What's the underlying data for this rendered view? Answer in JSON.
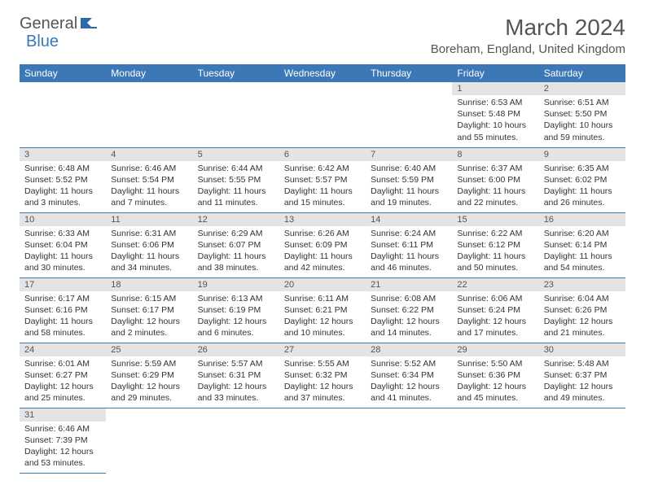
{
  "logo": {
    "part1": "General",
    "part2": "Blue"
  },
  "title": "March 2024",
  "location": "Boreham, England, United Kingdom",
  "colors": {
    "header_bg": "#3b78b5",
    "header_text": "#ffffff",
    "daynum_bg": "#e4e4e4",
    "border": "#3b78b5",
    "text": "#333333",
    "logo_gray": "#555555",
    "logo_blue": "#3b78b5"
  },
  "weekdays": [
    "Sunday",
    "Monday",
    "Tuesday",
    "Wednesday",
    "Thursday",
    "Friday",
    "Saturday"
  ],
  "weeks": [
    [
      null,
      null,
      null,
      null,
      null,
      {
        "n": "1",
        "sr": "Sunrise: 6:53 AM",
        "ss": "Sunset: 5:48 PM",
        "dl": "Daylight: 10 hours and 55 minutes."
      },
      {
        "n": "2",
        "sr": "Sunrise: 6:51 AM",
        "ss": "Sunset: 5:50 PM",
        "dl": "Daylight: 10 hours and 59 minutes."
      }
    ],
    [
      {
        "n": "3",
        "sr": "Sunrise: 6:48 AM",
        "ss": "Sunset: 5:52 PM",
        "dl": "Daylight: 11 hours and 3 minutes."
      },
      {
        "n": "4",
        "sr": "Sunrise: 6:46 AM",
        "ss": "Sunset: 5:54 PM",
        "dl": "Daylight: 11 hours and 7 minutes."
      },
      {
        "n": "5",
        "sr": "Sunrise: 6:44 AM",
        "ss": "Sunset: 5:55 PM",
        "dl": "Daylight: 11 hours and 11 minutes."
      },
      {
        "n": "6",
        "sr": "Sunrise: 6:42 AM",
        "ss": "Sunset: 5:57 PM",
        "dl": "Daylight: 11 hours and 15 minutes."
      },
      {
        "n": "7",
        "sr": "Sunrise: 6:40 AM",
        "ss": "Sunset: 5:59 PM",
        "dl": "Daylight: 11 hours and 19 minutes."
      },
      {
        "n": "8",
        "sr": "Sunrise: 6:37 AM",
        "ss": "Sunset: 6:00 PM",
        "dl": "Daylight: 11 hours and 22 minutes."
      },
      {
        "n": "9",
        "sr": "Sunrise: 6:35 AM",
        "ss": "Sunset: 6:02 PM",
        "dl": "Daylight: 11 hours and 26 minutes."
      }
    ],
    [
      {
        "n": "10",
        "sr": "Sunrise: 6:33 AM",
        "ss": "Sunset: 6:04 PM",
        "dl": "Daylight: 11 hours and 30 minutes."
      },
      {
        "n": "11",
        "sr": "Sunrise: 6:31 AM",
        "ss": "Sunset: 6:06 PM",
        "dl": "Daylight: 11 hours and 34 minutes."
      },
      {
        "n": "12",
        "sr": "Sunrise: 6:29 AM",
        "ss": "Sunset: 6:07 PM",
        "dl": "Daylight: 11 hours and 38 minutes."
      },
      {
        "n": "13",
        "sr": "Sunrise: 6:26 AM",
        "ss": "Sunset: 6:09 PM",
        "dl": "Daylight: 11 hours and 42 minutes."
      },
      {
        "n": "14",
        "sr": "Sunrise: 6:24 AM",
        "ss": "Sunset: 6:11 PM",
        "dl": "Daylight: 11 hours and 46 minutes."
      },
      {
        "n": "15",
        "sr": "Sunrise: 6:22 AM",
        "ss": "Sunset: 6:12 PM",
        "dl": "Daylight: 11 hours and 50 minutes."
      },
      {
        "n": "16",
        "sr": "Sunrise: 6:20 AM",
        "ss": "Sunset: 6:14 PM",
        "dl": "Daylight: 11 hours and 54 minutes."
      }
    ],
    [
      {
        "n": "17",
        "sr": "Sunrise: 6:17 AM",
        "ss": "Sunset: 6:16 PM",
        "dl": "Daylight: 11 hours and 58 minutes."
      },
      {
        "n": "18",
        "sr": "Sunrise: 6:15 AM",
        "ss": "Sunset: 6:17 PM",
        "dl": "Daylight: 12 hours and 2 minutes."
      },
      {
        "n": "19",
        "sr": "Sunrise: 6:13 AM",
        "ss": "Sunset: 6:19 PM",
        "dl": "Daylight: 12 hours and 6 minutes."
      },
      {
        "n": "20",
        "sr": "Sunrise: 6:11 AM",
        "ss": "Sunset: 6:21 PM",
        "dl": "Daylight: 12 hours and 10 minutes."
      },
      {
        "n": "21",
        "sr": "Sunrise: 6:08 AM",
        "ss": "Sunset: 6:22 PM",
        "dl": "Daylight: 12 hours and 14 minutes."
      },
      {
        "n": "22",
        "sr": "Sunrise: 6:06 AM",
        "ss": "Sunset: 6:24 PM",
        "dl": "Daylight: 12 hours and 17 minutes."
      },
      {
        "n": "23",
        "sr": "Sunrise: 6:04 AM",
        "ss": "Sunset: 6:26 PM",
        "dl": "Daylight: 12 hours and 21 minutes."
      }
    ],
    [
      {
        "n": "24",
        "sr": "Sunrise: 6:01 AM",
        "ss": "Sunset: 6:27 PM",
        "dl": "Daylight: 12 hours and 25 minutes."
      },
      {
        "n": "25",
        "sr": "Sunrise: 5:59 AM",
        "ss": "Sunset: 6:29 PM",
        "dl": "Daylight: 12 hours and 29 minutes."
      },
      {
        "n": "26",
        "sr": "Sunrise: 5:57 AM",
        "ss": "Sunset: 6:31 PM",
        "dl": "Daylight: 12 hours and 33 minutes."
      },
      {
        "n": "27",
        "sr": "Sunrise: 5:55 AM",
        "ss": "Sunset: 6:32 PM",
        "dl": "Daylight: 12 hours and 37 minutes."
      },
      {
        "n": "28",
        "sr": "Sunrise: 5:52 AM",
        "ss": "Sunset: 6:34 PM",
        "dl": "Daylight: 12 hours and 41 minutes."
      },
      {
        "n": "29",
        "sr": "Sunrise: 5:50 AM",
        "ss": "Sunset: 6:36 PM",
        "dl": "Daylight: 12 hours and 45 minutes."
      },
      {
        "n": "30",
        "sr": "Sunrise: 5:48 AM",
        "ss": "Sunset: 6:37 PM",
        "dl": "Daylight: 12 hours and 49 minutes."
      }
    ],
    [
      {
        "n": "31",
        "sr": "Sunrise: 6:46 AM",
        "ss": "Sunset: 7:39 PM",
        "dl": "Daylight: 12 hours and 53 minutes."
      },
      null,
      null,
      null,
      null,
      null,
      null
    ]
  ]
}
